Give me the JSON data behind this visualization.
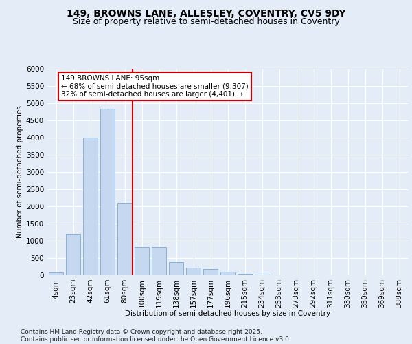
{
  "title1": "149, BROWNS LANE, ALLESLEY, COVENTRY, CV5 9DY",
  "title2": "Size of property relative to semi-detached houses in Coventry",
  "xlabel": "Distribution of semi-detached houses by size in Coventry",
  "ylabel": "Number of semi-detached properties",
  "annotation_title": "149 BROWNS LANE: 95sqm",
  "annotation_line1": "← 68% of semi-detached houses are smaller (9,307)",
  "annotation_line2": "32% of semi-detached houses are larger (4,401) →",
  "footer1": "Contains HM Land Registry data © Crown copyright and database right 2025.",
  "footer2": "Contains public sector information licensed under the Open Government Licence v3.0.",
  "categories": [
    "4sqm",
    "23sqm",
    "42sqm",
    "61sqm",
    "80sqm",
    "100sqm",
    "119sqm",
    "138sqm",
    "157sqm",
    "177sqm",
    "196sqm",
    "215sqm",
    "234sqm",
    "253sqm",
    "273sqm",
    "292sqm",
    "311sqm",
    "330sqm",
    "350sqm",
    "369sqm",
    "388sqm"
  ],
  "values": [
    75,
    1200,
    4000,
    4850,
    2100,
    820,
    820,
    380,
    220,
    190,
    100,
    40,
    12,
    5,
    2,
    1,
    0,
    0,
    0,
    0,
    0
  ],
  "bar_color": "#c5d8ef",
  "bar_edge_color": "#7aabcf",
  "vline_color": "#cc0000",
  "vline_x_idx": 4.47,
  "ylim": [
    0,
    6000
  ],
  "yticks": [
    0,
    500,
    1000,
    1500,
    2000,
    2500,
    3000,
    3500,
    4000,
    4500,
    5000,
    5500,
    6000
  ],
  "background_color": "#e4ecf7",
  "plot_bg_color": "#e4ecf7",
  "grid_color": "#ffffff",
  "title1_fontsize": 10,
  "title2_fontsize": 9,
  "axis_fontsize": 7.5,
  "tick_fontsize": 7.5,
  "annotation_fontsize": 7.5,
  "footer_fontsize": 6.5
}
